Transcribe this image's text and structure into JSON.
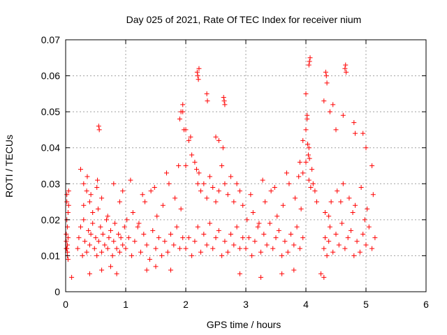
{
  "chart_data": {
    "type": "scatter",
    "title": "Day 025 of 2021, Rate Of TEC Index for receiver nium",
    "xlabel": "GPS time / hours",
    "ylabel": "ROTI / TECUs",
    "xlim": [
      0,
      6
    ],
    "ylim": [
      0,
      0.07
    ],
    "xticks": [
      "0",
      "1",
      "2",
      "3",
      "4",
      "5",
      "6"
    ],
    "yticks": [
      "0",
      "0.01",
      "0.02",
      "0.03",
      "0.04",
      "0.05",
      "0.06",
      "0.07"
    ],
    "grid": true,
    "marker": "+",
    "color": "#ff0000",
    "series": [
      {
        "x": [
          0.01,
          0.02,
          0.03,
          0.04,
          0.05,
          0.02,
          0.03,
          0.04,
          0.01,
          0.02,
          0.03,
          0.05,
          0.02,
          0.04,
          0.03,
          0.01,
          0.2,
          0.22,
          0.25,
          0.28,
          0.3,
          0.32,
          0.35,
          0.38,
          0.4,
          0.42,
          0.45,
          0.48,
          0.5,
          0.52,
          0.55,
          0.58,
          0.6,
          0.62,
          0.65,
          0.68,
          0.7,
          0.72,
          0.75,
          0.78,
          0.8,
          0.82,
          0.85,
          0.88,
          0.9,
          0.92,
          0.95,
          0.98,
          0.25,
          0.3,
          0.35,
          0.4,
          0.45,
          0.3,
          0.36,
          0.42,
          0.52,
          0.53,
          0.54,
          0.6,
          0.7,
          0.8,
          0.9,
          0.95,
          1.0,
          1.05,
          1.1,
          1.15,
          1.2,
          1.25,
          1.3,
          1.35,
          1.4,
          1.45,
          1.5,
          1.55,
          1.6,
          1.65,
          1.7,
          1.75,
          1.8,
          1.85,
          1.9,
          1.95,
          1.02,
          1.12,
          1.22,
          1.32,
          1.42,
          1.52,
          1.62,
          1.72,
          1.82,
          1.92,
          1.08,
          1.28,
          1.48,
          1.68,
          1.88,
          1.9,
          1.92,
          1.95,
          1.97,
          2.0,
          2.05,
          2.1,
          2.15,
          2.18,
          2.2,
          2.22,
          2.25,
          2.3,
          2.35,
          2.4,
          2.45,
          2.5,
          2.55,
          2.6,
          2.62,
          2.65,
          2.7,
          2.75,
          2.8,
          2.85,
          2.9,
          2.95,
          2.0,
          2.05,
          2.1,
          2.15,
          2.2,
          2.25,
          2.3,
          2.35,
          2.4,
          2.45,
          2.5,
          2.55,
          2.6,
          2.65,
          2.7,
          2.75,
          2.8,
          2.85,
          2.9,
          2.95,
          2.19,
          2.2,
          2.21,
          2.22,
          2.35,
          2.36,
          2.63,
          2.64,
          2.65,
          1.95,
          2.0,
          2.08,
          2.5,
          2.55,
          3.0,
          3.05,
          3.1,
          3.15,
          3.2,
          3.25,
          3.3,
          3.35,
          3.4,
          3.45,
          3.5,
          3.55,
          3.6,
          3.65,
          3.7,
          3.75,
          3.8,
          3.85,
          3.9,
          3.95,
          3.02,
          3.12,
          3.22,
          3.32,
          3.42,
          3.52,
          3.62,
          3.72,
          3.82,
          3.92,
          3.08,
          3.28,
          3.48,
          3.68,
          3.88,
          3.9,
          3.95,
          4.0,
          4.02,
          4.03,
          4.04,
          4.05,
          4.06,
          4.1,
          4.12,
          4.15,
          4.18,
          3.95,
          4.0,
          4.05,
          4.08,
          4.05,
          4.06,
          4.07,
          4.0,
          4.02,
          4.3,
          4.32,
          4.35,
          4.38,
          4.4,
          4.45,
          4.5,
          4.55,
          4.6,
          4.65,
          4.7,
          4.75,
          4.8,
          4.85,
          4.9,
          4.95,
          5.0,
          5.05,
          5.1,
          5.15,
          4.32,
          4.42,
          4.52,
          4.62,
          4.72,
          4.82,
          4.92,
          5.02,
          5.12,
          4.38,
          4.58,
          4.78,
          4.98,
          4.33,
          4.34,
          4.35,
          4.45,
          4.65,
          4.66,
          4.67,
          4.3,
          4.4,
          4.5,
          4.62,
          4.8,
          4.82,
          4.95,
          5.0,
          5.1,
          0.55,
          0.56,
          0.1,
          0.4,
          0.6,
          0.75,
          0.85,
          1.35,
          1.5,
          1.75,
          2.9,
          3.25,
          3.6,
          3.8,
          4.25,
          4.3
        ],
        "y": [
          0.014,
          0.012,
          0.018,
          0.022,
          0.028,
          0.025,
          0.011,
          0.009,
          0.016,
          0.02,
          0.013,
          0.024,
          0.027,
          0.015,
          0.01,
          0.012,
          0.012,
          0.015,
          0.018,
          0.01,
          0.02,
          0.014,
          0.011,
          0.017,
          0.013,
          0.016,
          0.019,
          0.012,
          0.015,
          0.01,
          0.014,
          0.018,
          0.011,
          0.016,
          0.013,
          0.02,
          0.012,
          0.015,
          0.017,
          0.01,
          0.014,
          0.019,
          0.012,
          0.016,
          0.011,
          0.015,
          0.013,
          0.018,
          0.034,
          0.03,
          0.028,
          0.025,
          0.022,
          0.024,
          0.032,
          0.027,
          0.029,
          0.031,
          0.023,
          0.026,
          0.021,
          0.03,
          0.025,
          0.028,
          0.012,
          0.015,
          0.01,
          0.014,
          0.018,
          0.011,
          0.016,
          0.013,
          0.009,
          0.017,
          0.012,
          0.015,
          0.01,
          0.014,
          0.011,
          0.016,
          0.013,
          0.018,
          0.012,
          0.015,
          0.02,
          0.022,
          0.019,
          0.025,
          0.028,
          0.021,
          0.024,
          0.03,
          0.026,
          0.023,
          0.031,
          0.027,
          0.029,
          0.033,
          0.035,
          0.048,
          0.05,
          0.052,
          0.045,
          0.035,
          0.042,
          0.038,
          0.036,
          0.034,
          0.03,
          0.033,
          0.028,
          0.03,
          0.026,
          0.032,
          0.029,
          0.025,
          0.028,
          0.035,
          0.04,
          0.03,
          0.027,
          0.032,
          0.025,
          0.03,
          0.028,
          0.024,
          0.012,
          0.015,
          0.01,
          0.014,
          0.018,
          0.011,
          0.016,
          0.013,
          0.019,
          0.012,
          0.015,
          0.017,
          0.01,
          0.014,
          0.011,
          0.016,
          0.013,
          0.018,
          0.012,
          0.015,
          0.061,
          0.06,
          0.059,
          0.062,
          0.055,
          0.053,
          0.054,
          0.053,
          0.052,
          0.05,
          0.045,
          0.043,
          0.043,
          0.042,
          0.012,
          0.015,
          0.01,
          0.014,
          0.018,
          0.011,
          0.016,
          0.013,
          0.019,
          0.012,
          0.015,
          0.017,
          0.01,
          0.014,
          0.011,
          0.016,
          0.013,
          0.018,
          0.012,
          0.015,
          0.02,
          0.022,
          0.019,
          0.025,
          0.028,
          0.021,
          0.024,
          0.03,
          0.026,
          0.023,
          0.027,
          0.031,
          0.029,
          0.033,
          0.032,
          0.036,
          0.042,
          0.045,
          0.049,
          0.041,
          0.038,
          0.04,
          0.037,
          0.034,
          0.03,
          0.028,
          0.025,
          0.033,
          0.036,
          0.031,
          0.029,
          0.063,
          0.064,
          0.065,
          0.055,
          0.048,
          0.012,
          0.015,
          0.01,
          0.014,
          0.018,
          0.011,
          0.016,
          0.013,
          0.019,
          0.012,
          0.015,
          0.017,
          0.01,
          0.014,
          0.011,
          0.016,
          0.013,
          0.018,
          0.012,
          0.015,
          0.022,
          0.025,
          0.028,
          0.03,
          0.026,
          0.024,
          0.029,
          0.023,
          0.027,
          0.021,
          0.025,
          0.022,
          0.02,
          0.061,
          0.06,
          0.058,
          0.052,
          0.062,
          0.063,
          0.061,
          0.053,
          0.05,
          0.045,
          0.049,
          0.047,
          0.044,
          0.044,
          0.04,
          0.035,
          0.046,
          0.045,
          0.004,
          0.005,
          0.006,
          0.007,
          0.005,
          0.006,
          0.007,
          0.006,
          0.005,
          0.004,
          0.005,
          0.006,
          0.005,
          0.004
        ]
      }
    ]
  }
}
